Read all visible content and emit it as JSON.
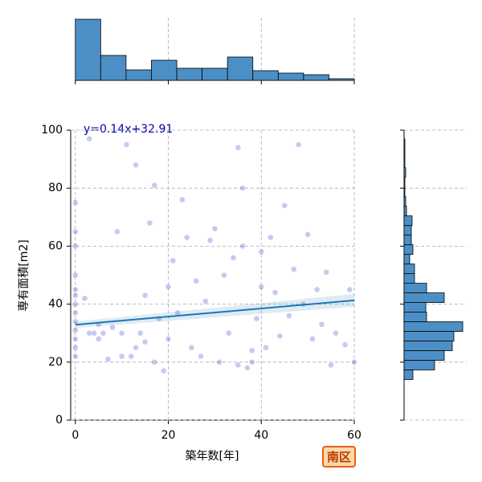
{
  "badge": "南区",
  "chart_data": [
    {
      "type": "scatter",
      "xlabel": "築年数[年]",
      "ylabel": "専有面積[m2]",
      "color": "#2424c8",
      "annotation": "y=0.14x+32.91",
      "regression": {
        "slope": 0.14,
        "intercept": 32.91,
        "color": "#1f77b4"
      },
      "x": [
        0,
        0,
        0,
        0,
        0,
        0,
        0,
        0,
        0,
        0,
        0,
        0,
        0,
        2,
        3,
        3,
        4,
        5,
        5,
        6,
        7,
        8,
        9,
        10,
        10,
        11,
        12,
        13,
        13,
        14,
        15,
        15,
        16,
        17,
        17,
        18,
        19,
        20,
        20,
        21,
        22,
        23,
        24,
        25,
        26,
        27,
        28,
        29,
        30,
        31,
        32,
        33,
        34,
        35,
        35,
        36,
        36,
        37,
        38,
        38,
        39,
        40,
        40,
        41,
        42,
        43,
        44,
        45,
        46,
        47,
        48,
        49,
        50,
        51,
        52,
        53,
        54,
        55,
        56,
        58,
        60,
        59
      ],
      "y": [
        25,
        28,
        31,
        34,
        37,
        40,
        43,
        45,
        50,
        60,
        65,
        75,
        22,
        42,
        30,
        97,
        30,
        28,
        33,
        30,
        21,
        32,
        65,
        22,
        30,
        95,
        22,
        88,
        25,
        30,
        27,
        43,
        68,
        81,
        20,
        35,
        17,
        28,
        46,
        55,
        37,
        76,
        63,
        25,
        48,
        22,
        41,
        62,
        66,
        20,
        50,
        30,
        56,
        94,
        19,
        80,
        60,
        18,
        20,
        24,
        35,
        58,
        46,
        25,
        63,
        44,
        29,
        74,
        36,
        52,
        95,
        40,
        64,
        28,
        45,
        33,
        51,
        19,
        30,
        26,
        20,
        45
      ],
      "xlim": [
        -1,
        60
      ],
      "ylim": [
        0,
        100
      ],
      "xticks": [
        0,
        20,
        40,
        60
      ],
      "yticks": [
        0,
        20,
        40,
        60,
        80,
        100
      ],
      "grid": true
    },
    {
      "type": "histogram",
      "orientation": "vertical",
      "color": "#4c8fc6",
      "bins": [
        0,
        5.45,
        10.91,
        16.36,
        21.82,
        27.27,
        32.73,
        38.18,
        43.64,
        49.09,
        54.55,
        60
      ],
      "counts": [
        76,
        31,
        13,
        25,
        15,
        15,
        29,
        12,
        9,
        7,
        2
      ],
      "xlim": [
        -1,
        60
      ],
      "ylim": [
        0,
        78
      ],
      "xticks": [
        0,
        20,
        40,
        60
      ],
      "grid": true
    },
    {
      "type": "histogram",
      "orientation": "horizontal",
      "color": "#4c8fc6",
      "bins": [
        14,
        17.32,
        20.64,
        23.96,
        27.28,
        30.6,
        33.92,
        37.24,
        40.56,
        43.88,
        47.2,
        50.52,
        53.84,
        57.16,
        60.48,
        63.8,
        67.12,
        70.44,
        73.76,
        77.08,
        80.4,
        83.72,
        87.04,
        90.36,
        93.68,
        97
      ],
      "counts": [
        11,
        38,
        50,
        60,
        62,
        73,
        28,
        27,
        50,
        28,
        13,
        13,
        7,
        11,
        9,
        9,
        10,
        3,
        2,
        1,
        1,
        2,
        1,
        1,
        1
      ],
      "xlim": [
        0,
        78
      ],
      "ylim": [
        0,
        100
      ],
      "yticks": [
        0,
        20,
        40,
        60,
        80,
        100
      ],
      "grid": true
    }
  ]
}
